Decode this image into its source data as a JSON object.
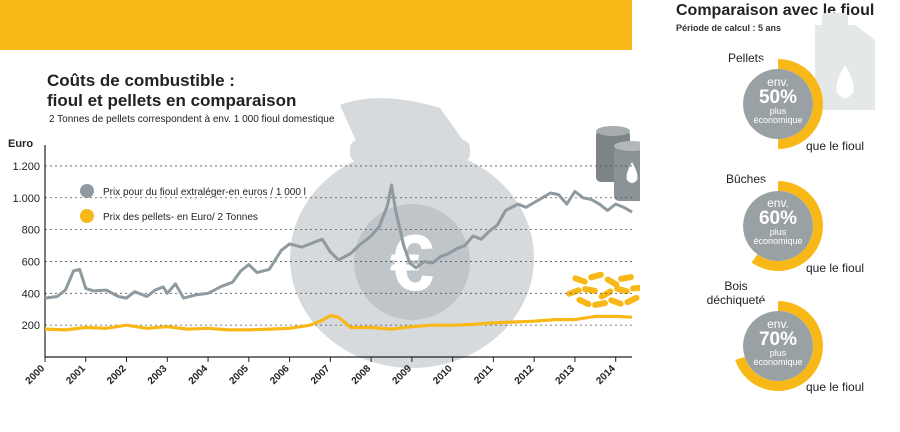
{
  "header": {
    "color": "#f8b817"
  },
  "chart_title_line1": "Coûts de combustible :",
  "chart_title_line2": "fioul et pellets en comparaison",
  "chart_subtitle": "2 Tonnes de pellets correspondent à env. 1 000 fioul domestique",
  "chart_data": {
    "type": "line",
    "title": "Coûts de combustible : fioul et pellets en comparaison",
    "ylabel": "Euro",
    "ylim": [
      0,
      1300
    ],
    "yticks": [
      200,
      400,
      600,
      800,
      1000,
      1200
    ],
    "ytick_labels": [
      "200",
      "400",
      "600",
      "800",
      "1.000",
      "1.200"
    ],
    "xlim": [
      2000,
      2014.4
    ],
    "x_ticks": [
      "2000",
      "2001",
      "2002",
      "2003",
      "2004",
      "2005",
      "2006",
      "2007",
      "2008",
      "2009",
      "2010",
      "2011",
      "2012",
      "2013",
      "2014"
    ],
    "grid": "horizontal dotted",
    "legend_position": "top-left",
    "series": [
      {
        "name": "Prix pour du fioul extraléger-en euros / 1 000 l",
        "color": "#8f9aa0",
        "x": [
          2000,
          2000.3,
          2000.5,
          2000.7,
          2000.85,
          2001,
          2001.2,
          2001.5,
          2001.8,
          2002,
          2002.2,
          2002.5,
          2002.7,
          2002.9,
          2003,
          2003.2,
          2003.4,
          2003.7,
          2004,
          2004.3,
          2004.6,
          2004.8,
          2005,
          2005.2,
          2005.5,
          2005.8,
          2006,
          2006.3,
          2006.6,
          2006.8,
          2007,
          2007.2,
          2007.5,
          2007.7,
          2008,
          2008.2,
          2008.4,
          2008.5,
          2008.6,
          2008.8,
          2008.95,
          2009.1,
          2009.3,
          2009.5,
          2009.7,
          2009.9,
          2010.1,
          2010.3,
          2010.5,
          2010.7,
          2010.9,
          2011.1,
          2011.3,
          2011.6,
          2011.8,
          2012,
          2012.2,
          2012.4,
          2012.6,
          2012.8,
          2013,
          2013.2,
          2013.4,
          2013.6,
          2013.8,
          2014,
          2014.2,
          2014.4
        ],
        "values": [
          370,
          380,
          420,
          540,
          550,
          430,
          415,
          420,
          380,
          370,
          410,
          380,
          420,
          440,
          400,
          460,
          370,
          390,
          400,
          440,
          470,
          540,
          580,
          530,
          550,
          670,
          710,
          690,
          720,
          740,
          660,
          610,
          650,
          700,
          760,
          820,
          950,
          1080,
          920,
          700,
          590,
          560,
          600,
          590,
          630,
          650,
          680,
          700,
          760,
          740,
          790,
          830,
          920,
          960,
          940,
          970,
          1000,
          1030,
          1020,
          960,
          1040,
          1000,
          990,
          960,
          920,
          960,
          940,
          910
        ]
      },
      {
        "name": "Prix des pellets- en Euro/ 2 Tonnes",
        "color": "#f8b817",
        "x": [
          2000,
          2000.5,
          2001,
          2001.5,
          2002,
          2002.5,
          2003,
          2003.5,
          2004,
          2004.5,
          2005,
          2005.5,
          2006,
          2006.5,
          2006.8,
          2007,
          2007.2,
          2007.5,
          2008,
          2008.5,
          2009,
          2009.5,
          2010,
          2010.5,
          2011,
          2011.5,
          2012,
          2012.5,
          2013,
          2013.5,
          2014,
          2014.4
        ],
        "values": [
          175,
          170,
          185,
          180,
          200,
          180,
          190,
          175,
          180,
          170,
          170,
          175,
          180,
          200,
          230,
          260,
          250,
          185,
          185,
          175,
          190,
          200,
          200,
          205,
          215,
          220,
          225,
          235,
          235,
          255,
          255,
          250
        ]
      }
    ]
  },
  "right": {
    "title": "Comparaison avec le fioul",
    "subtitle": "Période de calcul : 5 ans",
    "items": [
      {
        "label": "Pellets",
        "env": "env.",
        "percent": "50%",
        "percent_value": 50,
        "plus": "plus",
        "eco": "économique",
        "suffix": "que le fioul"
      },
      {
        "label": "Bûches",
        "env": "env.",
        "percent": "60%",
        "percent_value": 60,
        "plus": "plus",
        "eco": "économique",
        "suffix": "que le fioul"
      },
      {
        "label_line1": "Bois",
        "label_line2": "déchiqueté",
        "env": "env.",
        "percent": "70%",
        "percent_value": 70,
        "plus": "plus",
        "eco": "économique",
        "suffix": "que le fioul"
      }
    ]
  }
}
